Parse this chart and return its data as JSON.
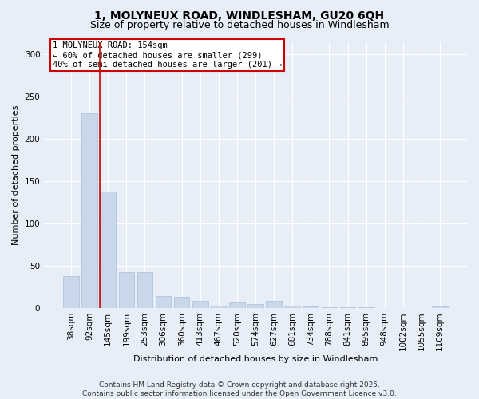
{
  "title_line1": "1, MOLYNEUX ROAD, WINDLESHAM, GU20 6QH",
  "title_line2": "Size of property relative to detached houses in Windlesham",
  "xlabel": "Distribution of detached houses by size in Windlesham",
  "ylabel": "Number of detached properties",
  "categories": [
    "38sqm",
    "92sqm",
    "145sqm",
    "199sqm",
    "253sqm",
    "306sqm",
    "360sqm",
    "413sqm",
    "467sqm",
    "520sqm",
    "574sqm",
    "627sqm",
    "681sqm",
    "734sqm",
    "788sqm",
    "841sqm",
    "895sqm",
    "948sqm",
    "1002sqm",
    "1055sqm",
    "1109sqm"
  ],
  "values": [
    38,
    230,
    138,
    42,
    42,
    14,
    13,
    8,
    3,
    7,
    5,
    8,
    3,
    2,
    1,
    1,
    1,
    0,
    0,
    0,
    2
  ],
  "bar_color": "#c8d8ea",
  "bar_edge_color": "#a8c0d8",
  "property_line_idx": 2,
  "property_line_color": "#cc0000",
  "annotation_text": "1 MOLYNEUX ROAD: 154sqm\n← 60% of detached houses are smaller (299)\n40% of semi-detached houses are larger (201) →",
  "annotation_box_color": "#ffffff",
  "annotation_box_edge": "#cc0000",
  "ylim": [
    0,
    315
  ],
  "yticks": [
    0,
    50,
    100,
    150,
    200,
    250,
    300
  ],
  "bg_color": "#e8eef8",
  "plot_bg_color": "#e8eef8",
  "grid_color": "#ffffff",
  "footer_line1": "Contains HM Land Registry data © Crown copyright and database right 2025.",
  "footer_line2": "Contains public sector information licensed under the Open Government Licence v3.0.",
  "title_fontsize": 10,
  "subtitle_fontsize": 9,
  "axis_label_fontsize": 8,
  "tick_fontsize": 7.5,
  "annotation_fontsize": 7.5,
  "footer_fontsize": 6.5
}
